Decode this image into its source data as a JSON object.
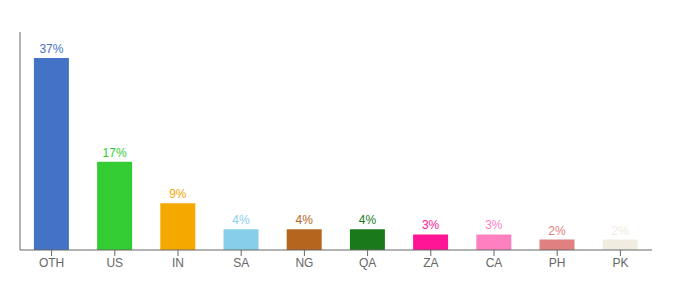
{
  "chart_data": {
    "type": "bar",
    "categories": [
      "OTH",
      "US",
      "IN",
      "SA",
      "NG",
      "QA",
      "ZA",
      "CA",
      "PH",
      "PK"
    ],
    "values": [
      37,
      17,
      9,
      4,
      4,
      4,
      3,
      3,
      2,
      2
    ],
    "value_labels": [
      "37%",
      "17%",
      "9%",
      "4%",
      "4%",
      "4%",
      "3%",
      "3%",
      "2%",
      "2%"
    ],
    "data_labels": true,
    "colors": [
      "#4472c4",
      "#33cc33",
      "#f5a800",
      "#87ceeb",
      "#b5651d",
      "#1a7a1a",
      "#ff1493",
      "#ff80c0",
      "#e08080",
      "#f0ede0"
    ],
    "ylim": [
      0,
      42
    ],
    "grid": false,
    "tick_labels": "x"
  }
}
